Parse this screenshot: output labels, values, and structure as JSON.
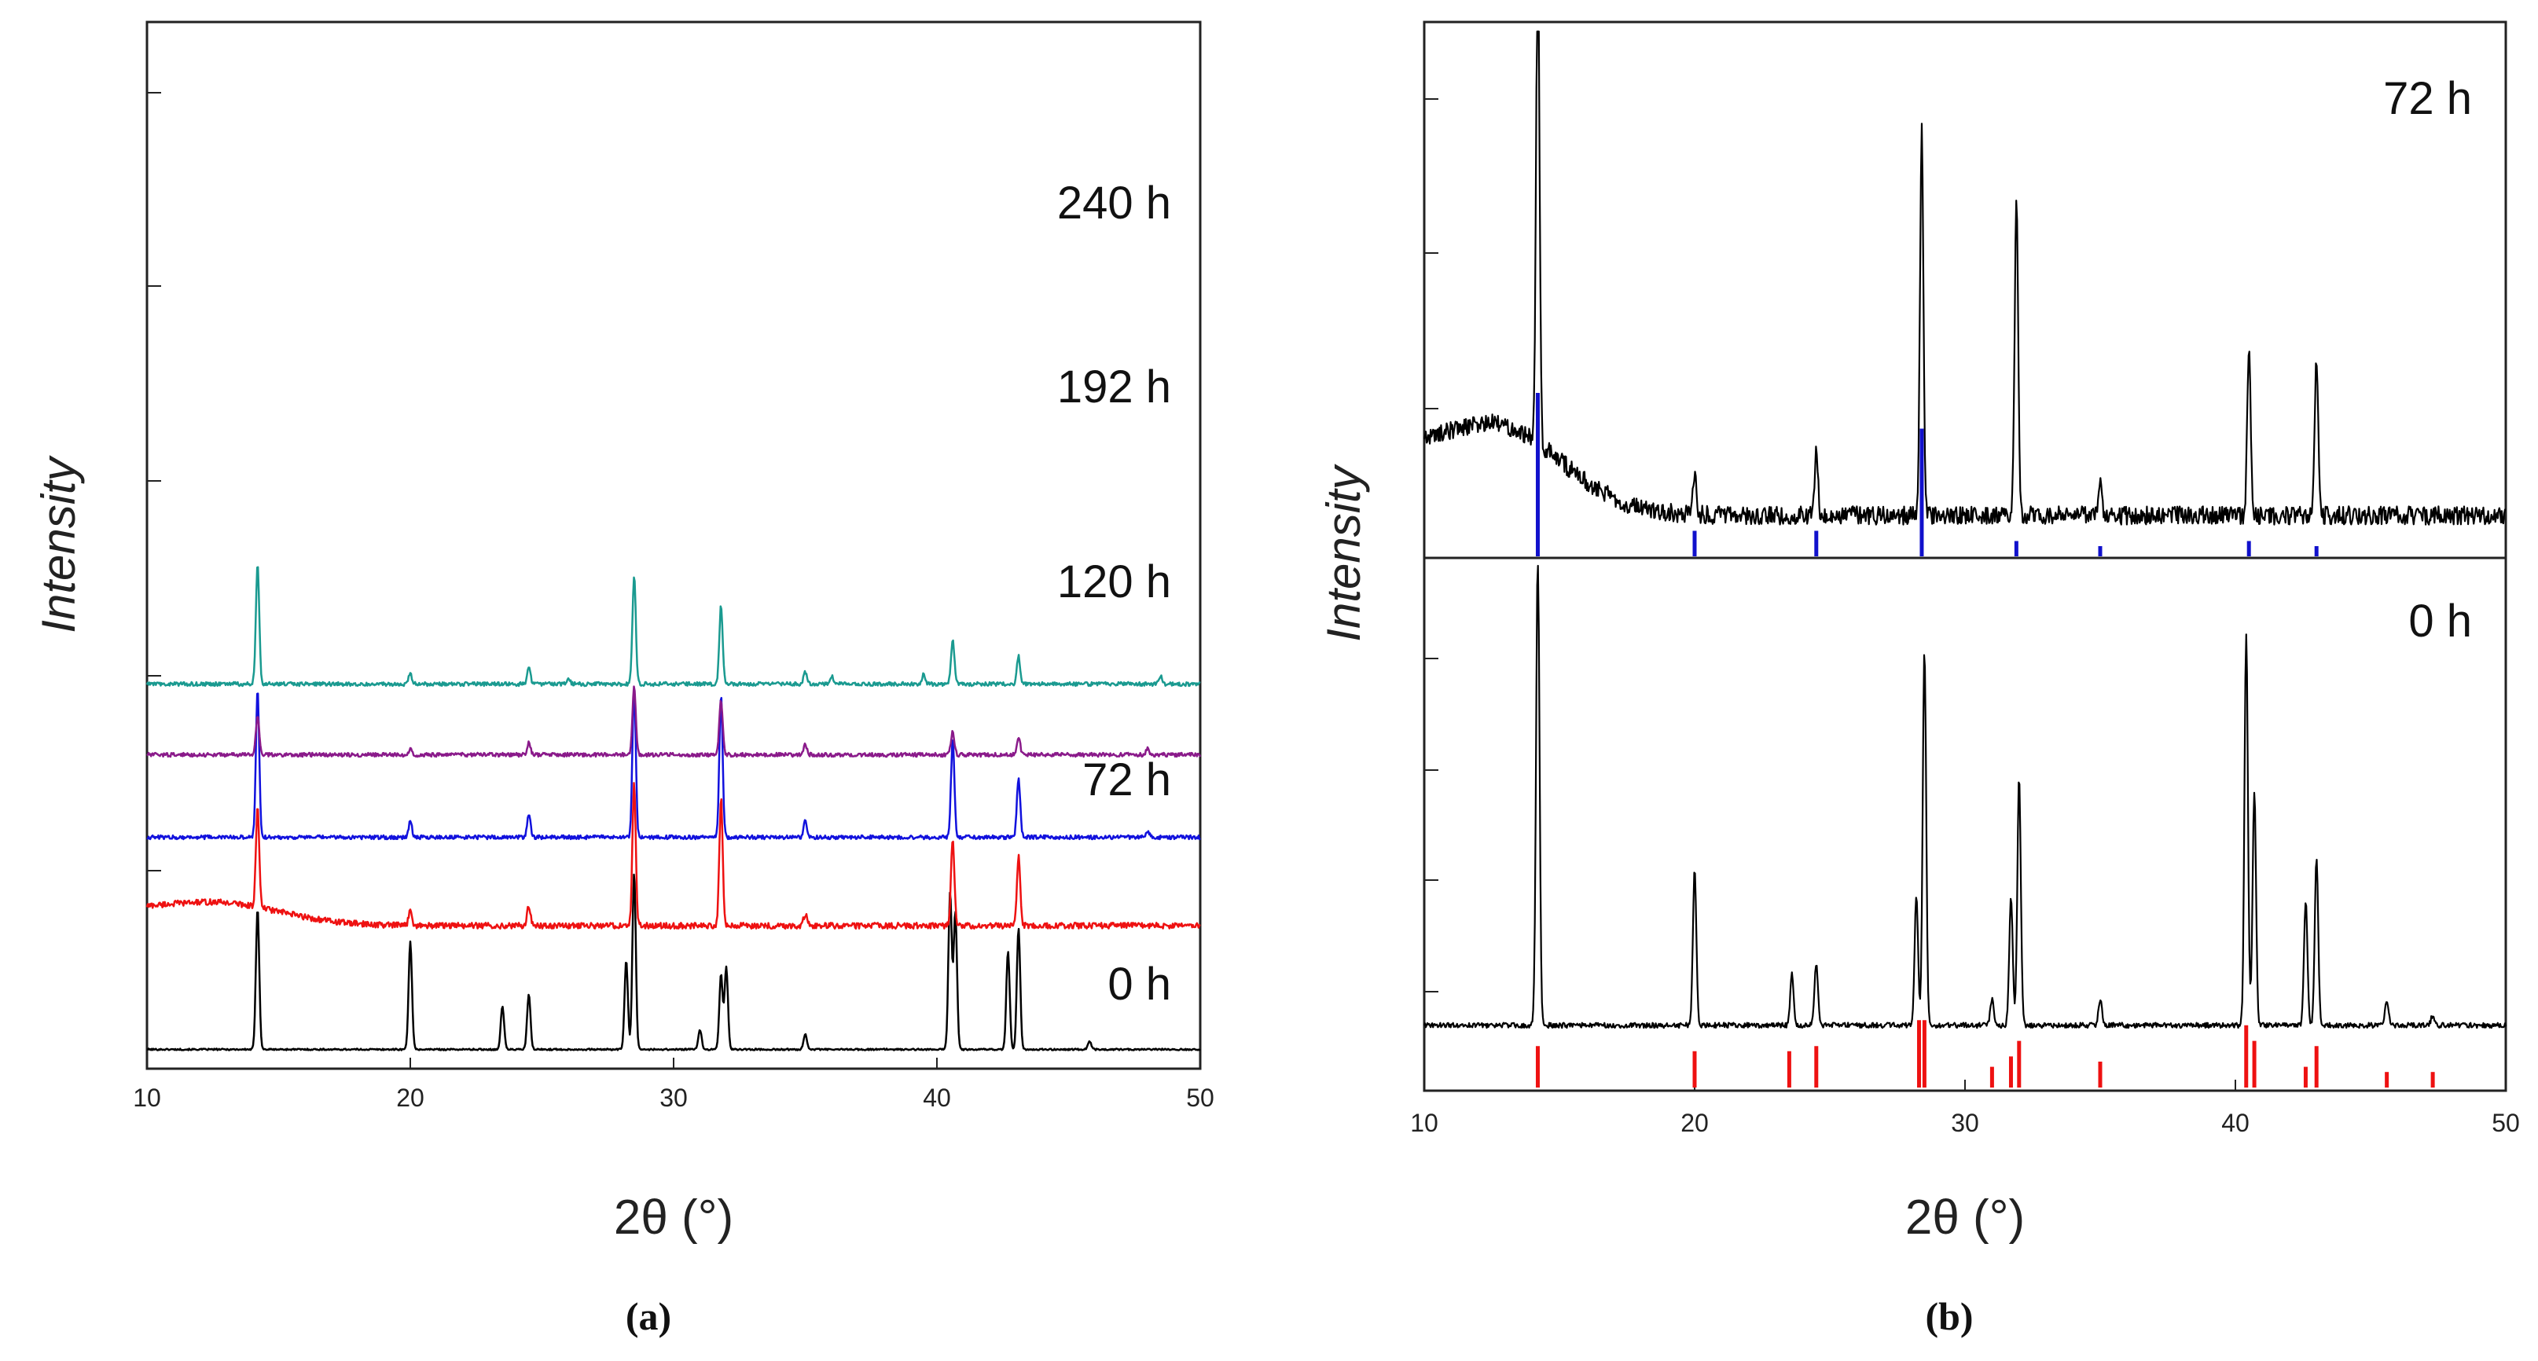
{
  "chart_data": [
    {
      "panel": "(a)",
      "type": "line",
      "xlabel": "2θ (°)",
      "ylabel": "Intensity",
      "xlim": [
        10,
        50
      ],
      "xticks": [
        10,
        20,
        30,
        40,
        50
      ],
      "series": [
        {
          "name": "0 h",
          "color": "#000000",
          "offset": 0.0,
          "base": 0.01,
          "noise": 0.004,
          "peaks": [
            [
              14.2,
              0.72
            ],
            [
              20.0,
              0.55
            ],
            [
              23.5,
              0.22
            ],
            [
              24.5,
              0.28
            ],
            [
              28.2,
              0.45
            ],
            [
              28.5,
              0.9
            ],
            [
              31.0,
              0.1
            ],
            [
              31.8,
              0.38
            ],
            [
              32.0,
              0.42
            ],
            [
              35.0,
              0.08
            ],
            [
              40.5,
              0.8
            ],
            [
              40.7,
              0.7
            ],
            [
              42.7,
              0.5
            ],
            [
              43.1,
              0.62
            ],
            [
              45.8,
              0.04
            ]
          ]
        },
        {
          "name": "72 h",
          "color": "#ee1111",
          "offset": 0.55,
          "base": 0.09,
          "noise": 0.015,
          "hump": [
            12.5,
            3.5,
            0.12
          ],
          "peaks": [
            [
              14.2,
              0.5
            ],
            [
              20.0,
              0.08
            ],
            [
              24.5,
              0.1
            ],
            [
              28.5,
              0.72
            ],
            [
              31.8,
              0.65
            ],
            [
              35.0,
              0.06
            ],
            [
              40.6,
              0.45
            ],
            [
              43.1,
              0.35
            ]
          ]
        },
        {
          "name": "120 h",
          "color": "#1111dd",
          "offset": 1.0,
          "base": 0.09,
          "noise": 0.01,
          "peaks": [
            [
              14.2,
              0.75
            ],
            [
              20.0,
              0.08
            ],
            [
              24.5,
              0.12
            ],
            [
              28.5,
              0.75
            ],
            [
              31.8,
              0.72
            ],
            [
              35.0,
              0.08
            ],
            [
              40.6,
              0.5
            ],
            [
              43.1,
              0.3
            ],
            [
              48.0,
              0.03
            ]
          ]
        },
        {
          "name": "192 h",
          "color": "#8a1a8a",
          "offset": 1.42,
          "base": 0.09,
          "noise": 0.01,
          "peaks": [
            [
              14.2,
              0.2
            ],
            [
              20.0,
              0.03
            ],
            [
              24.5,
              0.06
            ],
            [
              28.5,
              0.35
            ],
            [
              31.8,
              0.28
            ],
            [
              35.0,
              0.05
            ],
            [
              40.6,
              0.12
            ],
            [
              43.1,
              0.09
            ],
            [
              48.0,
              0.03
            ]
          ]
        },
        {
          "name": "240 h",
          "color": "#1a9a90",
          "offset": 1.78,
          "base": 0.09,
          "noise": 0.01,
          "peaks": [
            [
              14.2,
              0.62
            ],
            [
              20.0,
              0.05
            ],
            [
              24.5,
              0.08
            ],
            [
              26.0,
              0.03
            ],
            [
              28.5,
              0.55
            ],
            [
              31.8,
              0.4
            ],
            [
              35.0,
              0.06
            ],
            [
              36.0,
              0.04
            ],
            [
              39.5,
              0.05
            ],
            [
              40.6,
              0.22
            ],
            [
              43.1,
              0.14
            ],
            [
              48.5,
              0.04
            ]
          ]
        }
      ]
    },
    {
      "panel": "(b)",
      "type": "line",
      "xlabel": "2θ (°)",
      "ylabel": "Intensity",
      "xlim": [
        10,
        50
      ],
      "xticks": [
        10,
        20,
        30,
        40,
        50
      ],
      "subplots": [
        {
          "name": "72 h",
          "line_color": "#000000",
          "stick_color": "#1111cc",
          "base": 0.08,
          "noise": 0.018,
          "hump": [
            12.5,
            3.5,
            0.18
          ],
          "peaks": [
            [
              14.2,
              0.95
            ],
            [
              20.0,
              0.08
            ],
            [
              24.5,
              0.12
            ],
            [
              28.4,
              0.75
            ],
            [
              31.9,
              0.62
            ],
            [
              35.0,
              0.06
            ],
            [
              40.5,
              0.32
            ],
            [
              43.0,
              0.3
            ]
          ],
          "sticks": [
            [
              14.2,
              0.32
            ],
            [
              20.0,
              0.05
            ],
            [
              24.5,
              0.05
            ],
            [
              28.4,
              0.25
            ],
            [
              31.9,
              0.03
            ],
            [
              35.0,
              0.02
            ],
            [
              40.5,
              0.03
            ],
            [
              43.0,
              0.02
            ]
          ]
        },
        {
          "name": "0 h",
          "line_color": "#000000",
          "stick_color": "#ee1111",
          "base": 0.12,
          "noise": 0.005,
          "peaks": [
            [
              14.2,
              0.9
            ],
            [
              20.0,
              0.3
            ],
            [
              23.6,
              0.1
            ],
            [
              24.5,
              0.12
            ],
            [
              28.2,
              0.25
            ],
            [
              28.5,
              0.72
            ],
            [
              31.0,
              0.05
            ],
            [
              31.7,
              0.25
            ],
            [
              32.0,
              0.48
            ],
            [
              35.0,
              0.05
            ],
            [
              40.4,
              0.75
            ],
            [
              40.7,
              0.45
            ],
            [
              42.6,
              0.24
            ],
            [
              43.0,
              0.32
            ],
            [
              45.6,
              0.05
            ],
            [
              47.3,
              0.02
            ]
          ],
          "sticks": [
            [
              14.2,
              0.08
            ],
            [
              20.0,
              0.07
            ],
            [
              23.5,
              0.07
            ],
            [
              24.5,
              0.08
            ],
            [
              28.3,
              0.13
            ],
            [
              28.5,
              0.13
            ],
            [
              31.0,
              0.04
            ],
            [
              31.7,
              0.06
            ],
            [
              32.0,
              0.09
            ],
            [
              35.0,
              0.05
            ],
            [
              40.4,
              0.12
            ],
            [
              40.7,
              0.09
            ],
            [
              42.6,
              0.04
            ],
            [
              43.0,
              0.08
            ],
            [
              45.6,
              0.03
            ],
            [
              47.3,
              0.03
            ]
          ]
        }
      ]
    }
  ]
}
